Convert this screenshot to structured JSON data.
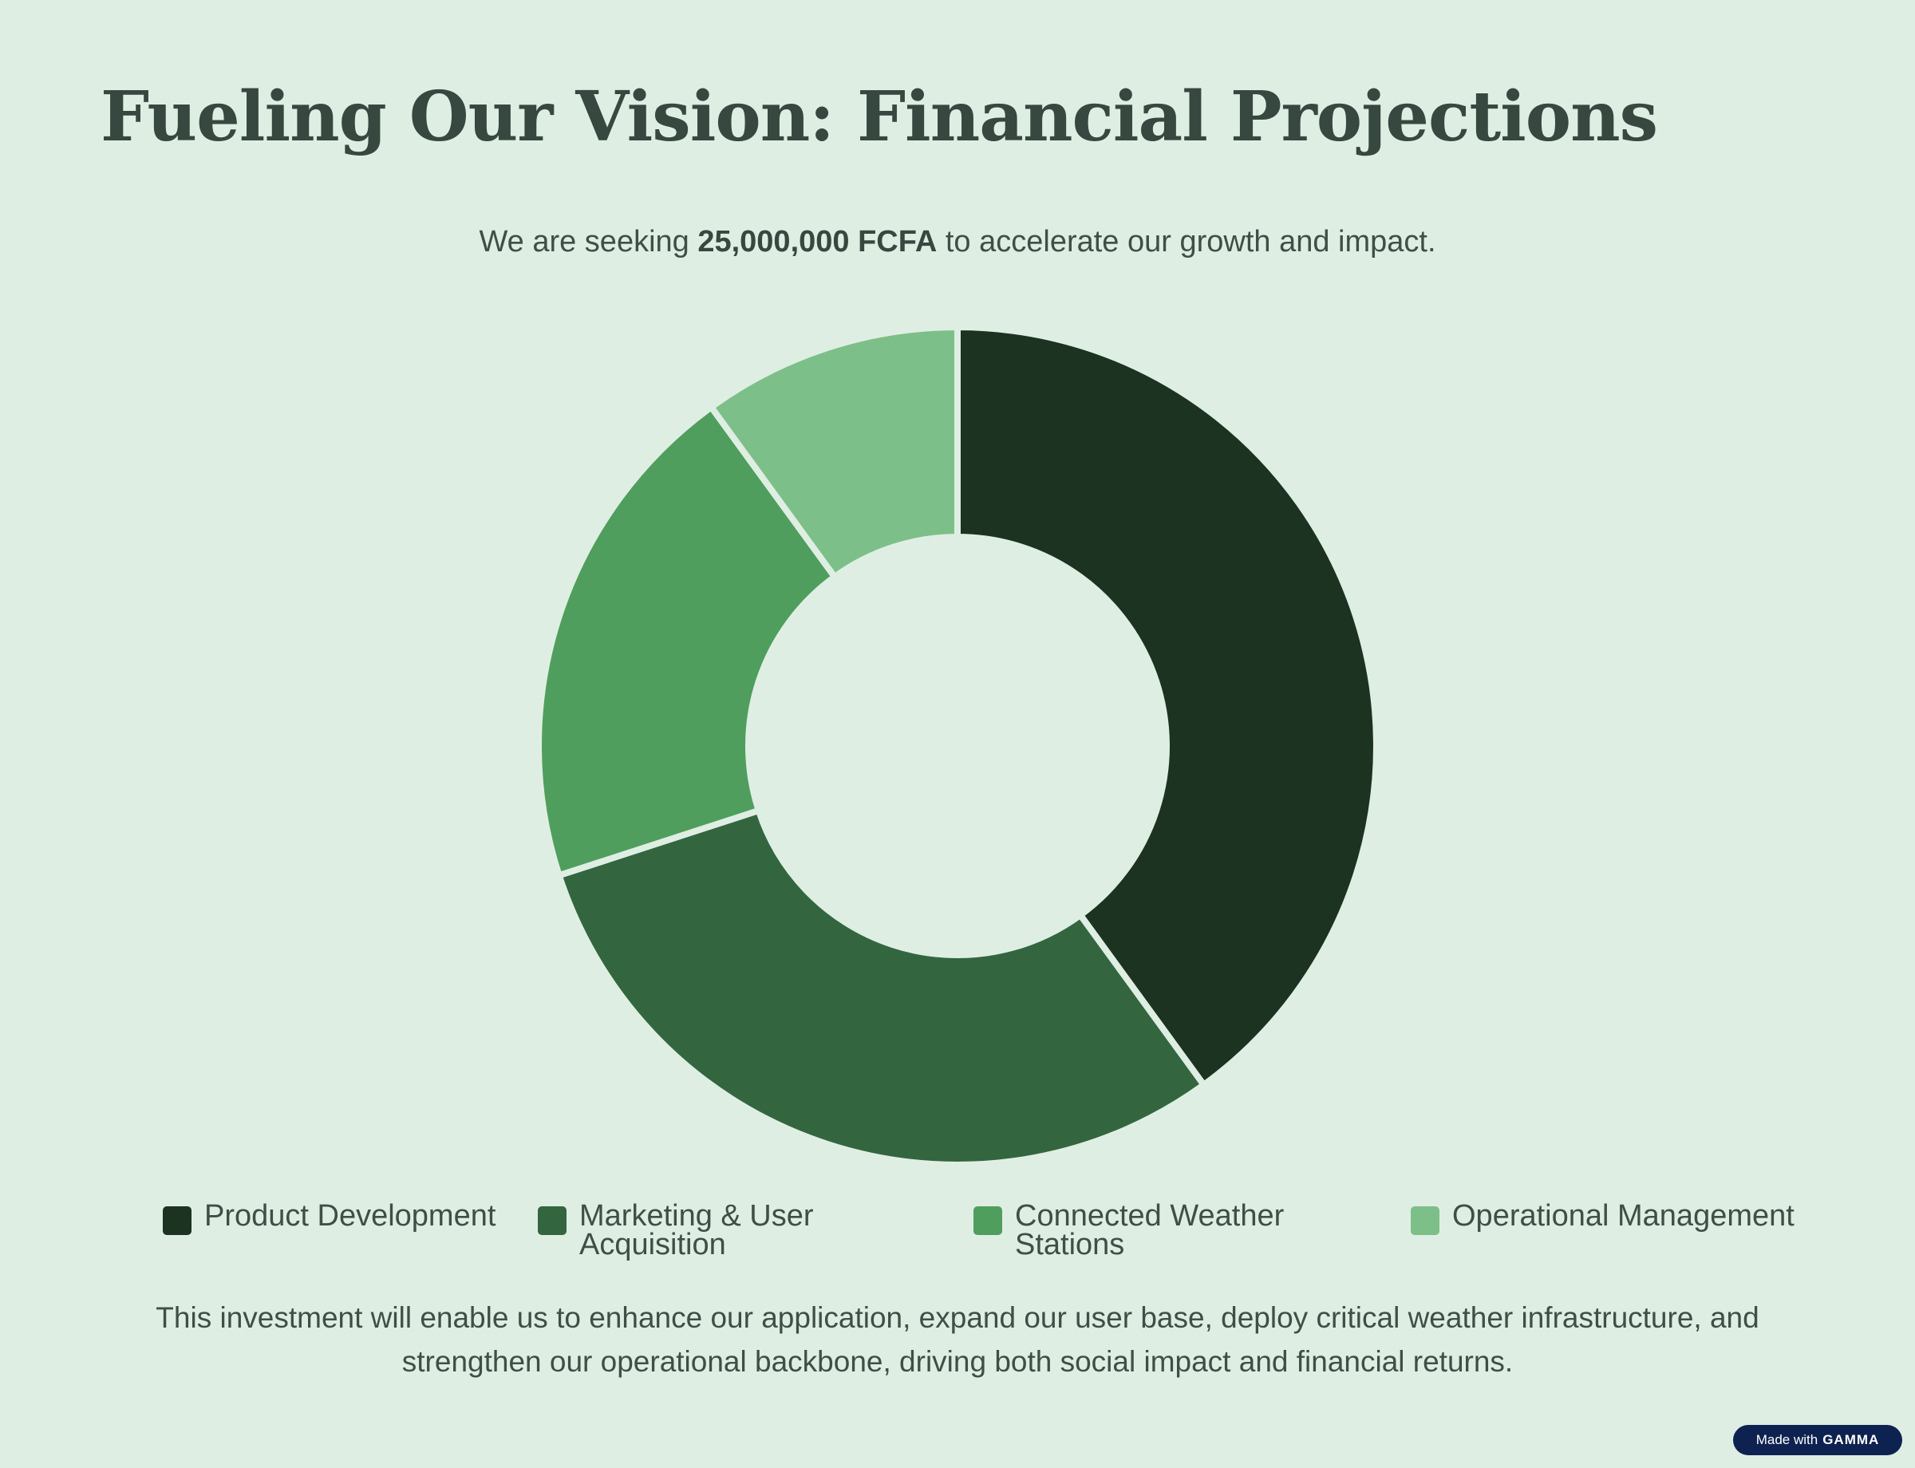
{
  "title": "Fueling Our Vision: Financial Projections",
  "subtitle": {
    "prefix": "We are seeking ",
    "amount": "25,000,000 FCFA",
    "suffix": " to accelerate our growth and impact."
  },
  "chart_data": {
    "type": "pie",
    "donut": true,
    "categories": [
      "Product Development",
      "Marketing & User Acquisition",
      "Connected Weather Stations",
      "Operational Management"
    ],
    "values": [
      40,
      30,
      20,
      10
    ],
    "colors": [
      "#1b3320",
      "#33663f",
      "#4f9e5d",
      "#7dbf88"
    ],
    "legend_position": "bottom"
  },
  "legend": [
    {
      "label": "Product Development",
      "color": "#1b3320"
    },
    {
      "label": "Marketing & User Acquisition",
      "color": "#33663f"
    },
    {
      "label": "Connected Weather Stations",
      "color": "#4f9e5d"
    },
    {
      "label": "Operational Management",
      "color": "#7dbf88"
    }
  ],
  "footer": "This investment will enable us to enhance our application, expand our user base, deploy critical weather infrastructure, and strengthen our operational backbone, driving both social impact and financial returns.",
  "badge": {
    "prefix": "Made with",
    "brand": "GAMMA"
  }
}
